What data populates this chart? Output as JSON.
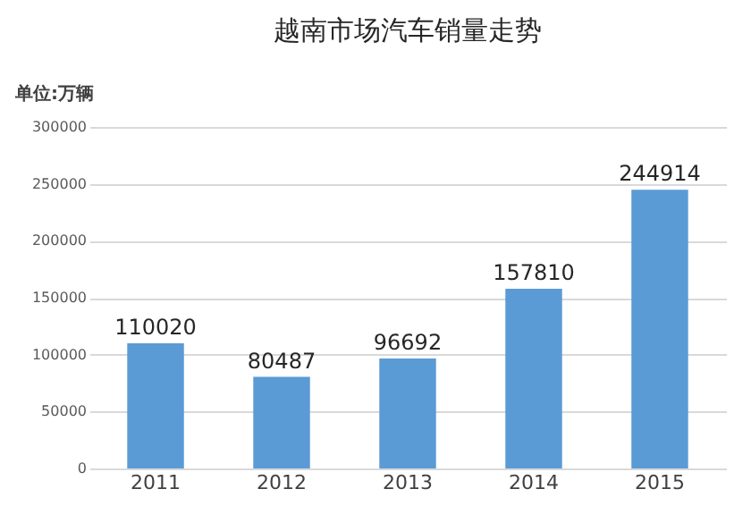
{
  "chart_data": {
    "type": "bar",
    "title": "越南市场汽车销量走势",
    "ylabel": "单位:万辆",
    "categories": [
      "2011",
      "2012",
      "2013",
      "2014",
      "2015"
    ],
    "values": [
      110020,
      80487,
      96692,
      157810,
      244914
    ],
    "color": "#5b9bd5",
    "ylim": [
      0,
      300000
    ],
    "yticks": [
      0,
      50000,
      100000,
      150000,
      200000,
      250000,
      300000
    ],
    "grid": "y",
    "data_labels": true
  }
}
